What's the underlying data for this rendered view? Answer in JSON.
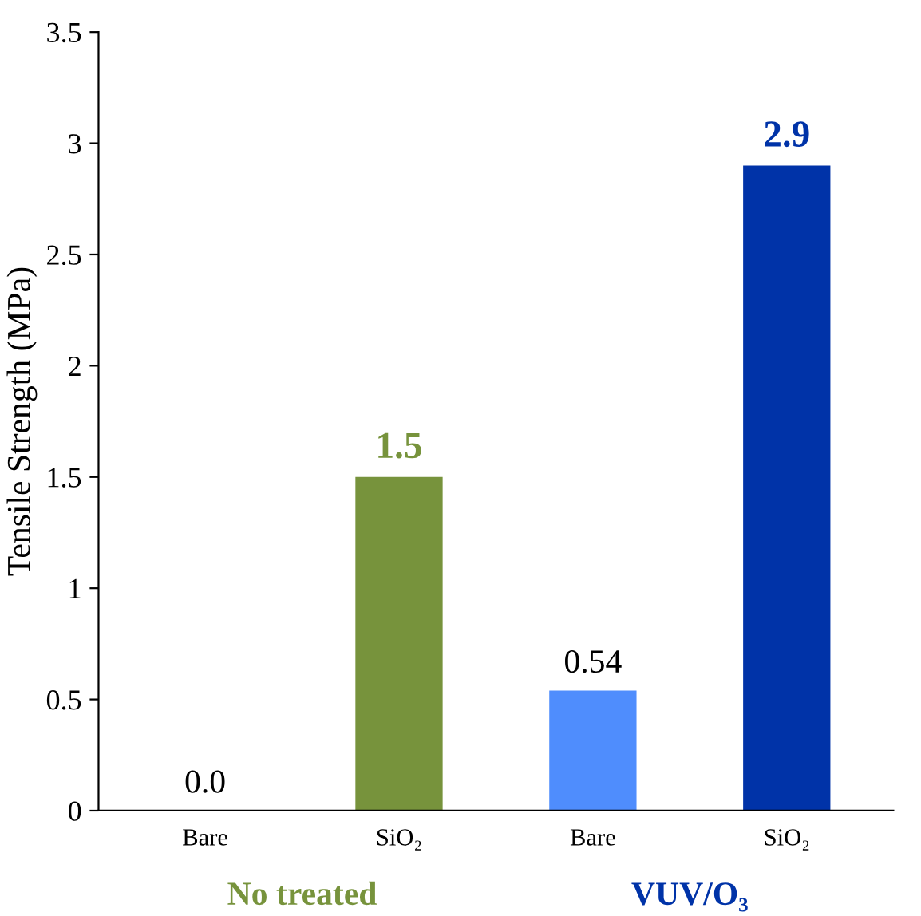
{
  "chart_data": {
    "type": "bar",
    "ylabel": "Tensile Strength (MPa)",
    "categories": [
      "Bare",
      "SiO₂",
      "Bare",
      "SiO₂"
    ],
    "values": [
      0.0,
      1.5,
      0.54,
      2.9
    ],
    "colors": [
      "#77933c",
      "#77933c",
      "#4f8dfd",
      "#0033a8"
    ],
    "value_labels": [
      "0.0",
      "1.5",
      "0.54",
      "2.9"
    ],
    "annotations": [
      "No treated",
      "VUV/O₃"
    ],
    "ylim": [
      0,
      3.5
    ],
    "yticks": [
      0,
      0.5,
      1,
      1.5,
      2,
      2.5,
      3,
      3.5
    ],
    "grid": false,
    "legend": false
  }
}
